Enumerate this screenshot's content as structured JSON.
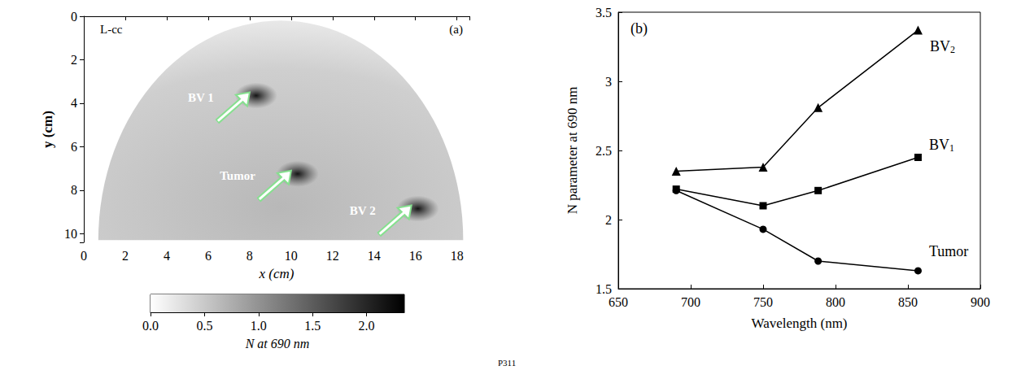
{
  "chart_data": [
    {
      "type": "image",
      "title": "L-cc",
      "panel_label": "(a)",
      "xlabel": "x (cm)",
      "ylabel": "y (cm)",
      "xlim": [
        0,
        18.6
      ],
      "xticks": [
        0,
        2,
        4,
        6,
        8,
        10,
        12,
        14,
        16,
        18
      ],
      "ylim": [
        0,
        10.4
      ],
      "yticks": [
        0,
        2,
        4,
        6,
        8,
        10
      ],
      "annotations": [
        {
          "text": "BV 1",
          "x": 8.0,
          "y": 3.5
        },
        {
          "text": "Tumor",
          "x": 10.0,
          "y": 7.1
        },
        {
          "text": "BV 2",
          "x": 15.8,
          "y": 8.7
        }
      ],
      "colorbar": {
        "label": "N at 690 nm",
        "range": [
          0,
          2.35
        ],
        "ticks": [
          {
            "value": 0,
            "label": "0.0"
          },
          {
            "value": 0.5,
            "label": "0.5"
          },
          {
            "value": 1,
            "label": "1.0"
          },
          {
            "value": 1.5,
            "label": "1.5"
          },
          {
            "value": 2,
            "label": "2.0"
          }
        ]
      }
    },
    {
      "type": "line",
      "panel_label": "(b)",
      "xlabel": "Wavelength (nm)",
      "ylabel": "N parameter at 690 nm",
      "xlim": [
        650,
        900
      ],
      "xticks": [
        650,
        700,
        750,
        800,
        850,
        900
      ],
      "ylim": [
        1.5,
        3.5
      ],
      "yticks": [
        1.5,
        2,
        2.5,
        3,
        3.5
      ],
      "grid": false,
      "x": [
        690,
        750,
        788,
        857
      ],
      "series": [
        {
          "name": "BV2",
          "color": "#000000",
          "marker": "triangle",
          "values": [
            2.35,
            2.38,
            2.81,
            3.37
          ]
        },
        {
          "name": "BV1",
          "color": "#000000",
          "marker": "rect",
          "values": [
            2.22,
            2.1,
            2.21,
            2.45
          ]
        },
        {
          "name": "Tumor",
          "color": "#000000",
          "marker": "circle",
          "values": [
            2.21,
            1.93,
            1.7,
            1.63
          ]
        }
      ]
    }
  ],
  "footnote": "P311"
}
